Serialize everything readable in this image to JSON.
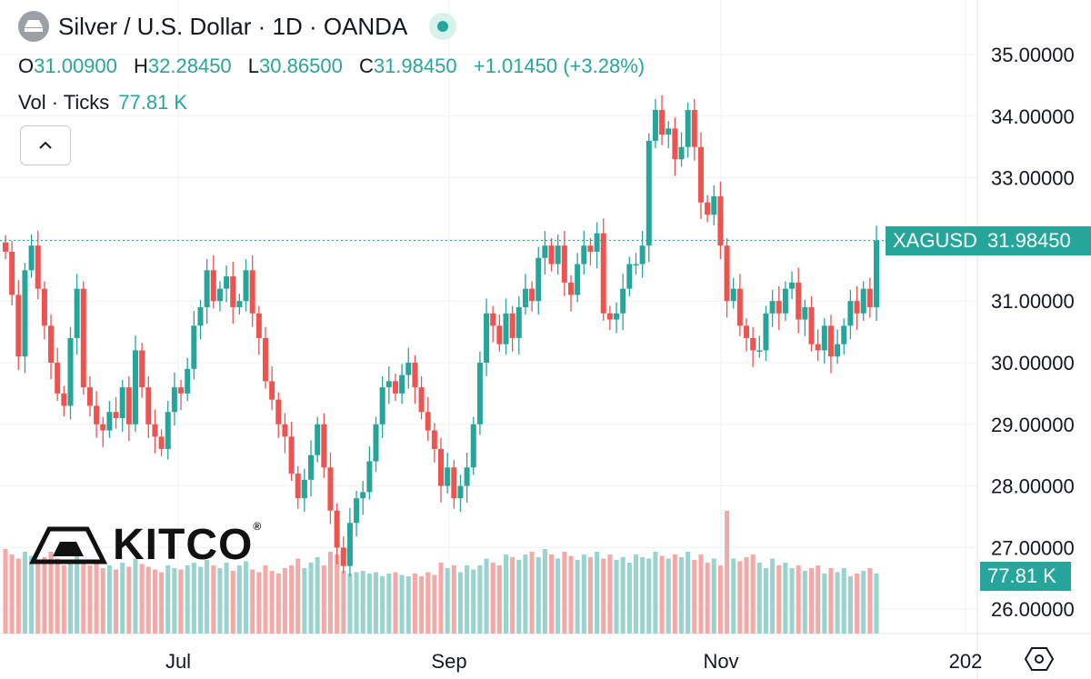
{
  "header": {
    "title": "Silver / U.S. Dollar · 1D · OANDA",
    "ohlc": {
      "o_label": "O",
      "o_value": "31.00900",
      "h_label": "H",
      "h_value": "32.28450",
      "l_label": "L",
      "l_value": "30.86500",
      "c_label": "C",
      "c_value": "31.98450",
      "change": "+1.01450 (+3.28%)"
    },
    "volume": {
      "label": "Vol · Ticks",
      "value": "77.81 K"
    }
  },
  "price_badge": {
    "symbol": "XAGUSD",
    "price": "31.98450"
  },
  "volume_badge": "77.81 K",
  "watermark": "KITCO",
  "watermark_reg": "®",
  "colors": {
    "up": "#26a69a",
    "down": "#ef5350",
    "up_vol": "#99d3cd",
    "down_vol": "#f5a9a7",
    "grid": "#eef0f3"
  },
  "icons": {
    "logo": "silver-bars-icon",
    "collapse": "chevron-up-icon",
    "settings": "hexagon-settings-icon"
  },
  "chart_data": {
    "type": "candlestick",
    "symbol": "XAGUSD",
    "interval": "1D",
    "source": "OANDA",
    "y_ticks": [
      "35.00000",
      "34.00000",
      "33.00000",
      "32.00000",
      "31.00000",
      "30.00000",
      "29.00000",
      "28.00000",
      "27.00000",
      "26.00000"
    ],
    "y_range": [
      25.7,
      35.4
    ],
    "x_ticks": [
      "Jul",
      "Sep",
      "Nov",
      "202"
    ],
    "last_price": 31.9845,
    "grid": true,
    "closes": [
      31.8,
      31.1,
      30.1,
      31.5,
      31.9,
      31.2,
      30.6,
      30.0,
      29.5,
      29.3,
      30.4,
      31.2,
      29.6,
      29.3,
      29.0,
      28.9,
      29.2,
      29.1,
      29.6,
      29.0,
      30.2,
      29.6,
      29.0,
      28.8,
      28.6,
      29.2,
      29.6,
      29.5,
      29.9,
      30.6,
      30.9,
      31.5,
      31.0,
      31.2,
      31.4,
      30.9,
      31.0,
      31.5,
      30.8,
      30.4,
      29.7,
      29.4,
      29.0,
      28.8,
      28.2,
      27.8,
      28.1,
      28.5,
      29.0,
      28.3,
      27.6,
      27.0,
      26.7,
      27.4,
      27.8,
      27.9,
      28.4,
      29.0,
      29.6,
      29.7,
      29.5,
      29.8,
      30.0,
      29.6,
      29.2,
      28.9,
      28.6,
      28.0,
      28.3,
      27.8,
      28.0,
      28.3,
      29.0,
      30.0,
      30.8,
      30.6,
      30.3,
      30.8,
      30.4,
      30.9,
      31.2,
      31.0,
      31.7,
      31.9,
      31.6,
      31.9,
      31.3,
      31.1,
      31.6,
      31.9,
      31.8,
      32.1,
      30.8,
      30.7,
      30.8,
      31.2,
      31.6,
      31.6,
      31.9,
      33.6,
      34.1,
      33.7,
      33.8,
      33.3,
      33.5,
      34.1,
      33.5,
      32.6,
      32.4,
      32.7,
      31.9,
      31.0,
      31.2,
      30.6,
      30.4,
      30.2,
      30.2,
      30.8,
      31.0,
      30.8,
      31.2,
      31.3,
      30.7,
      30.9,
      30.3,
      30.2,
      30.6,
      30.1,
      30.3,
      30.6,
      31.0,
      30.8,
      31.2,
      30.9,
      31.9845
    ],
    "volumes": [
      0.62,
      0.58,
      0.55,
      0.6,
      0.57,
      0.52,
      0.56,
      0.6,
      0.55,
      0.5,
      0.54,
      0.58,
      0.53,
      0.5,
      0.52,
      0.48,
      0.5,
      0.47,
      0.52,
      0.49,
      0.55,
      0.51,
      0.49,
      0.47,
      0.45,
      0.5,
      0.48,
      0.47,
      0.5,
      0.52,
      0.49,
      0.54,
      0.5,
      0.48,
      0.52,
      0.46,
      0.5,
      0.53,
      0.47,
      0.45,
      0.5,
      0.46,
      0.44,
      0.48,
      0.5,
      0.55,
      0.48,
      0.52,
      0.56,
      0.5,
      0.6,
      0.58,
      0.46,
      0.44,
      0.45,
      0.46,
      0.44,
      0.45,
      0.42,
      0.44,
      0.45,
      0.43,
      0.42,
      0.44,
      0.42,
      0.45,
      0.43,
      0.52,
      0.48,
      0.5,
      0.45,
      0.5,
      0.47,
      0.5,
      0.55,
      0.52,
      0.5,
      0.58,
      0.56,
      0.54,
      0.58,
      0.6,
      0.56,
      0.62,
      0.58,
      0.55,
      0.6,
      0.57,
      0.54,
      0.58,
      0.56,
      0.6,
      0.55,
      0.58,
      0.54,
      0.56,
      0.52,
      0.58,
      0.56,
      0.55,
      0.6,
      0.57,
      0.55,
      0.58,
      0.56,
      0.6,
      0.54,
      0.58,
      0.52,
      0.55,
      0.5,
      0.9,
      0.55,
      0.53,
      0.56,
      0.58,
      0.52,
      0.48,
      0.55,
      0.5,
      0.52,
      0.48,
      0.5,
      0.46,
      0.48,
      0.5,
      0.44,
      0.48,
      0.45,
      0.48,
      0.42,
      0.44,
      0.46,
      0.48,
      0.44,
      0.46,
      0.47
    ]
  }
}
